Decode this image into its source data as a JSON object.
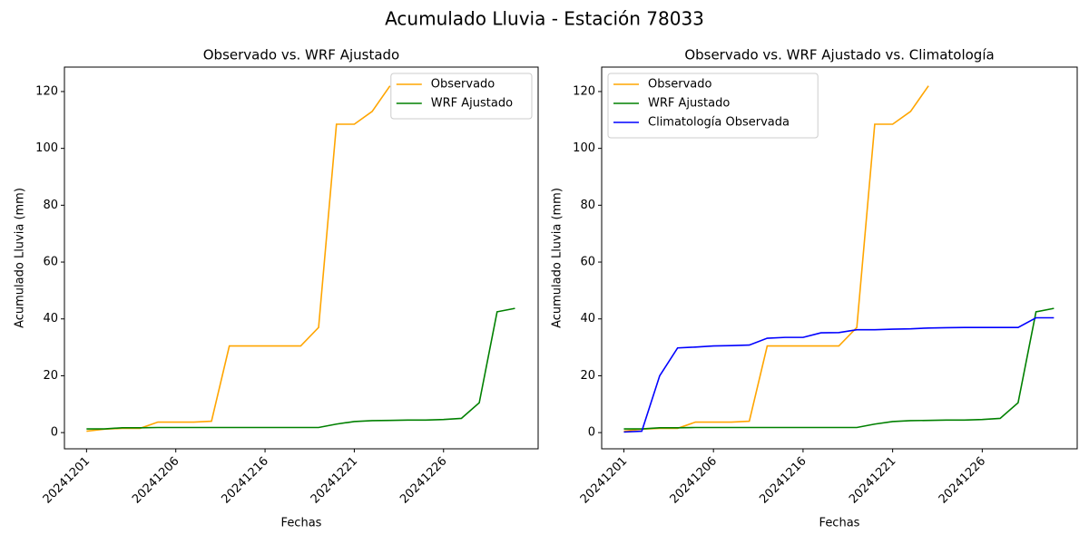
{
  "title": "Acumulado Lluvia - Estación 78033",
  "chart_data": [
    {
      "type": "line",
      "title": "Observado vs. WRF Ajustado",
      "xlabel": "Fechas",
      "ylabel": "Acumulado Lluvia (mm)",
      "categories": [
        "20241201",
        null,
        null,
        null,
        null,
        "20241206",
        null,
        null,
        null,
        null,
        "20241216",
        null,
        null,
        null,
        null,
        "20241221",
        null,
        null,
        null,
        null,
        "20241226",
        null,
        null,
        null,
        null
      ],
      "ylim": [
        -5.7,
        128.6
      ],
      "yticks": [
        0,
        20,
        40,
        60,
        80,
        100,
        120
      ],
      "legend": "upper right",
      "series": [
        {
          "name": "Observado",
          "color": "orange",
          "values": [
            0.5,
            1.2,
            1.5,
            1.5,
            3.7,
            3.7,
            3.7,
            4.0,
            30.5,
            30.5,
            30.5,
            30.5,
            30.5,
            37,
            108.5,
            108.5,
            113,
            122,
            null,
            null,
            null,
            null,
            null,
            null,
            null
          ]
        },
        {
          "name": "WRF Ajustado",
          "color": "green",
          "values": [
            1.3,
            1.3,
            1.7,
            1.7,
            1.8,
            1.8,
            1.8,
            1.8,
            1.8,
            1.8,
            1.8,
            1.8,
            1.8,
            1.8,
            3.0,
            3.9,
            4.2,
            4.3,
            4.4,
            4.4,
            4.6,
            5.0,
            10.5,
            42.5,
            43.7
          ]
        }
      ]
    },
    {
      "type": "line",
      "title": "Observado vs. WRF Ajustado vs. Climatología",
      "xlabel": "Fechas",
      "ylabel": "Acumulado Lluvia (mm)",
      "categories": [
        "20241201",
        null,
        null,
        null,
        null,
        "20241206",
        null,
        null,
        null,
        null,
        "20241216",
        null,
        null,
        null,
        null,
        "20241221",
        null,
        null,
        null,
        null,
        "20241226",
        null,
        null,
        null,
        null
      ],
      "ylim": [
        -5.7,
        128.6
      ],
      "yticks": [
        0,
        20,
        40,
        60,
        80,
        100,
        120
      ],
      "legend": "upper left",
      "series": [
        {
          "name": "Observado",
          "color": "orange",
          "values": [
            0.5,
            1.2,
            1.5,
            1.5,
            3.7,
            3.7,
            3.7,
            4.0,
            30.5,
            30.5,
            30.5,
            30.5,
            30.5,
            37,
            108.5,
            108.5,
            113,
            122,
            null,
            null,
            null,
            null,
            null,
            null,
            null
          ]
        },
        {
          "name": "WRF Ajustado",
          "color": "green",
          "values": [
            1.3,
            1.3,
            1.7,
            1.7,
            1.8,
            1.8,
            1.8,
            1.8,
            1.8,
            1.8,
            1.8,
            1.8,
            1.8,
            1.8,
            3.0,
            3.9,
            4.2,
            4.3,
            4.4,
            4.4,
            4.6,
            5.0,
            10.5,
            42.5,
            43.7
          ]
        },
        {
          "name": "Climatología Observada",
          "color": "blue",
          "values": [
            0.2,
            0.5,
            20,
            29.8,
            30.1,
            30.5,
            30.6,
            30.8,
            33.2,
            33.5,
            33.5,
            35.1,
            35.2,
            36.2,
            36.2,
            36.4,
            36.5,
            36.8,
            36.9,
            37.0,
            37.0,
            37.0,
            37.0,
            40.4,
            40.4
          ]
        }
      ]
    }
  ]
}
